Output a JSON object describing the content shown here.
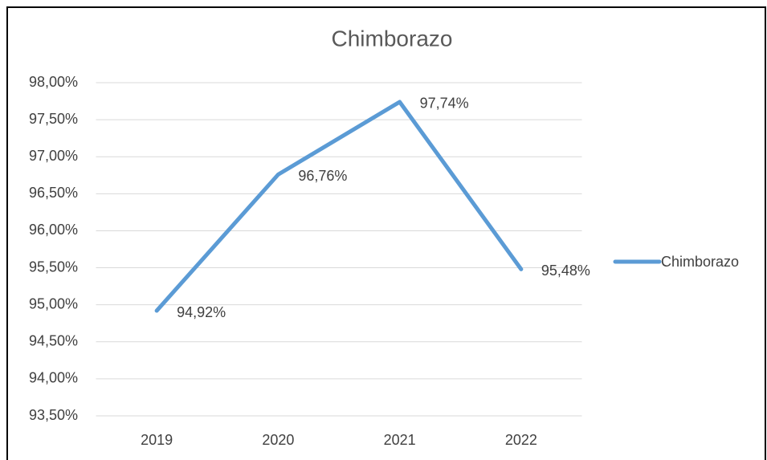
{
  "chart_data": {
    "type": "line",
    "title": "Chimborazo",
    "categories": [
      "2019",
      "2020",
      "2021",
      "2022"
    ],
    "series": [
      {
        "name": "Chimborazo",
        "color": "#5b9bd5",
        "values": [
          94.92,
          96.76,
          97.74,
          95.48
        ],
        "value_labels": [
          "94,92%",
          "96,76%",
          "97,74%",
          "95,48%"
        ]
      }
    ],
    "ylim": [
      93.5,
      98
    ],
    "yticks": [
      {
        "value": 93.5,
        "label": "93,50%"
      },
      {
        "value": 94,
        "label": "94,00%"
      },
      {
        "value": 94.5,
        "label": "94,50%"
      },
      {
        "value": 95,
        "label": "95,00%"
      },
      {
        "value": 95.5,
        "label": "95,50%"
      },
      {
        "value": 96,
        "label": "96,00%"
      },
      {
        "value": 96.5,
        "label": "96,50%"
      },
      {
        "value": 97,
        "label": "97,00%"
      },
      {
        "value": 97.5,
        "label": "97,50%"
      },
      {
        "value": 98,
        "label": "98,00%"
      }
    ],
    "grid": true,
    "legend": "right"
  }
}
